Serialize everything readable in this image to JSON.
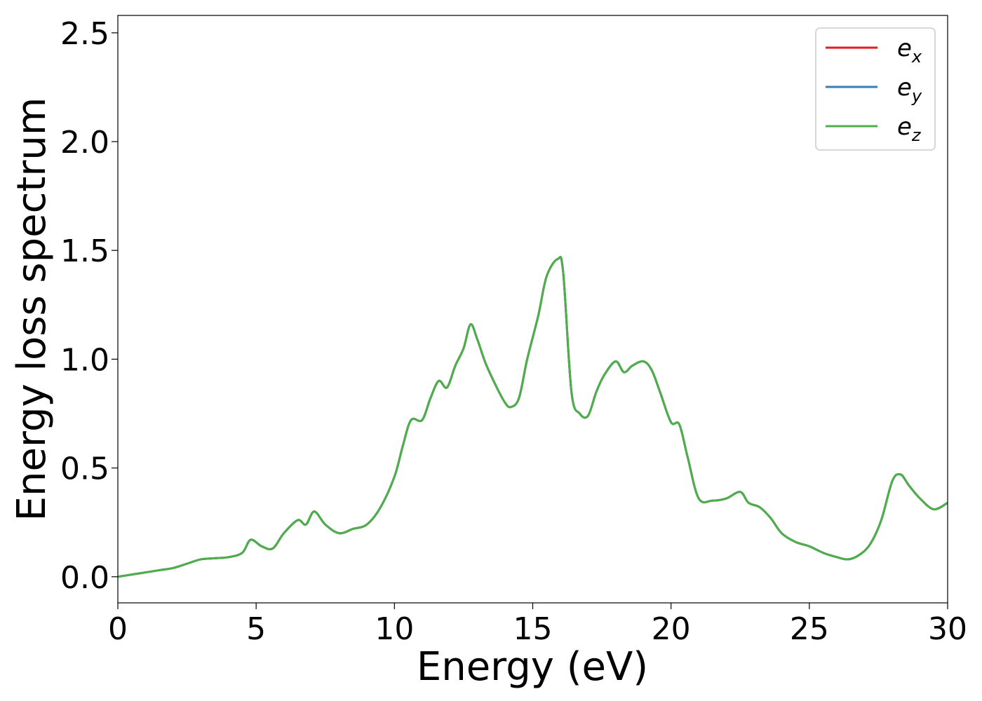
{
  "chart_data": {
    "type": "line",
    "xlabel": "Energy (eV)",
    "ylabel": "Energy loss spectrum",
    "xlim": [
      0,
      30
    ],
    "ylim": [
      -0.12,
      2.58
    ],
    "xticks": [
      0,
      5,
      10,
      15,
      20,
      25,
      30
    ],
    "xtick_labels": [
      "0",
      "5",
      "10",
      "15",
      "20",
      "25",
      "30"
    ],
    "yticks": [
      0.0,
      0.5,
      1.0,
      1.5,
      2.0,
      2.5
    ],
    "ytick_labels": [
      "0.0",
      "0.5",
      "1.0",
      "1.5",
      "2.0",
      "2.5"
    ],
    "grid": false,
    "legend_position": "top-right",
    "x": [
      0,
      0.5,
      1,
      1.5,
      2,
      2.5,
      3,
      3.5,
      4,
      4.5,
      4.8,
      5.2,
      5.6,
      6,
      6.5,
      6.8,
      7.1,
      7.5,
      8,
      8.5,
      9,
      9.5,
      10,
      10.3,
      10.6,
      11,
      11.3,
      11.6,
      11.9,
      12.2,
      12.5,
      12.75,
      13,
      13.3,
      13.7,
      14,
      14.2,
      14.5,
      14.8,
      15.2,
      15.5,
      15.9,
      16.1,
      16.4,
      16.7,
      17,
      17.3,
      17.6,
      18,
      18.3,
      18.6,
      19,
      19.3,
      19.6,
      20,
      20.3,
      20.6,
      21,
      21.5,
      22,
      22.5,
      22.8,
      23.2,
      23.6,
      24,
      24.5,
      25,
      25.5,
      26,
      26.4,
      26.8,
      27.2,
      27.6,
      28,
      28.3,
      28.6,
      29,
      29.5,
      30
    ],
    "series": [
      {
        "name": "e_x",
        "legend_main": "e",
        "legend_sub": "x",
        "color": "#e41a1c",
        "values": [
          0.0,
          0.01,
          0.02,
          0.03,
          0.04,
          0.06,
          0.08,
          0.085,
          0.09,
          0.11,
          0.17,
          0.14,
          0.13,
          0.2,
          0.26,
          0.24,
          0.3,
          0.24,
          0.2,
          0.22,
          0.24,
          0.32,
          0.46,
          0.6,
          0.72,
          0.72,
          0.82,
          0.9,
          0.87,
          0.97,
          1.05,
          1.16,
          1.09,
          0.98,
          0.87,
          0.8,
          0.78,
          0.82,
          1.0,
          1.2,
          1.38,
          1.46,
          1.4,
          0.85,
          0.75,
          0.74,
          0.85,
          0.93,
          0.99,
          0.94,
          0.97,
          0.99,
          0.95,
          0.85,
          0.71,
          0.7,
          0.55,
          0.36,
          0.35,
          0.36,
          0.39,
          0.34,
          0.32,
          0.27,
          0.2,
          0.16,
          0.14,
          0.11,
          0.09,
          0.08,
          0.1,
          0.15,
          0.26,
          0.44,
          0.47,
          0.42,
          0.36,
          0.31,
          0.34
        ]
      },
      {
        "name": "e_y",
        "legend_main": "e",
        "legend_sub": "y",
        "color": "#377eb8",
        "values": [
          0.0,
          0.01,
          0.02,
          0.03,
          0.04,
          0.06,
          0.08,
          0.085,
          0.09,
          0.11,
          0.17,
          0.14,
          0.13,
          0.2,
          0.26,
          0.24,
          0.3,
          0.24,
          0.2,
          0.22,
          0.24,
          0.32,
          0.46,
          0.6,
          0.72,
          0.72,
          0.82,
          0.9,
          0.87,
          0.97,
          1.05,
          1.16,
          1.09,
          0.98,
          0.87,
          0.8,
          0.78,
          0.82,
          1.0,
          1.2,
          1.38,
          1.46,
          1.4,
          0.85,
          0.75,
          0.74,
          0.85,
          0.93,
          0.99,
          0.94,
          0.97,
          0.99,
          0.95,
          0.85,
          0.71,
          0.7,
          0.55,
          0.36,
          0.35,
          0.36,
          0.39,
          0.34,
          0.32,
          0.27,
          0.2,
          0.16,
          0.14,
          0.11,
          0.09,
          0.08,
          0.1,
          0.15,
          0.26,
          0.44,
          0.47,
          0.42,
          0.36,
          0.31,
          0.34
        ]
      },
      {
        "name": "e_z",
        "legend_main": "e",
        "legend_sub": "z",
        "color": "#4daf4a",
        "values": [
          0.0,
          0.01,
          0.02,
          0.03,
          0.04,
          0.06,
          0.08,
          0.085,
          0.09,
          0.11,
          0.17,
          0.14,
          0.13,
          0.2,
          0.26,
          0.24,
          0.3,
          0.24,
          0.2,
          0.22,
          0.24,
          0.32,
          0.46,
          0.6,
          0.72,
          0.72,
          0.82,
          0.9,
          0.87,
          0.97,
          1.05,
          1.16,
          1.09,
          0.98,
          0.87,
          0.8,
          0.78,
          0.82,
          1.0,
          1.2,
          1.38,
          1.46,
          1.4,
          0.85,
          0.75,
          0.74,
          0.85,
          0.93,
          0.99,
          0.94,
          0.97,
          0.99,
          0.95,
          0.85,
          0.71,
          0.7,
          0.55,
          0.36,
          0.35,
          0.36,
          0.39,
          0.34,
          0.32,
          0.27,
          0.2,
          0.16,
          0.14,
          0.11,
          0.09,
          0.08,
          0.1,
          0.15,
          0.26,
          0.44,
          0.47,
          0.42,
          0.36,
          0.31,
          0.34
        ]
      }
    ]
  }
}
